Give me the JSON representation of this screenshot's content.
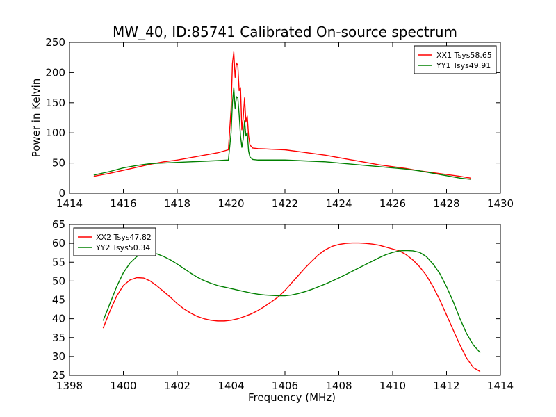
{
  "figure": {
    "title": "MW_40, ID:85741 Calibrated On-source spectrum"
  },
  "chart_data": [
    {
      "type": "line",
      "title": "MW_40, ID:85741 Calibrated On-source spectrum",
      "xlabel": "",
      "ylabel": "Power in Kelvin",
      "xlim": [
        1414,
        1430
      ],
      "ylim": [
        0,
        250
      ],
      "xticks": [
        1414,
        1416,
        1418,
        1420,
        1422,
        1424,
        1426,
        1428,
        1430
      ],
      "yticks": [
        0,
        50,
        100,
        150,
        200,
        250
      ],
      "grid": false,
      "legend_position": "upper-right",
      "series": [
        {
          "name": "XX1 Tsys58.65",
          "color": "#ff0000",
          "x": [
            1414.9,
            1415.5,
            1416.0,
            1416.5,
            1417.0,
            1417.5,
            1418.0,
            1418.5,
            1419.0,
            1419.5,
            1419.9,
            1420.0,
            1420.05,
            1420.1,
            1420.15,
            1420.2,
            1420.25,
            1420.3,
            1420.35,
            1420.4,
            1420.45,
            1420.5,
            1420.55,
            1420.6,
            1420.65,
            1420.7,
            1420.8,
            1421.0,
            1421.5,
            1422.0,
            1422.5,
            1423.0,
            1423.5,
            1424.0,
            1424.5,
            1425.0,
            1425.5,
            1426.0,
            1426.5,
            1427.0,
            1427.5,
            1428.0,
            1428.5,
            1428.9
          ],
          "values": [
            28,
            33,
            38,
            43,
            48,
            52,
            55,
            59,
            63,
            67,
            72,
            140,
            215,
            234,
            192,
            216,
            212,
            170,
            175,
            105,
            125,
            158,
            118,
            128,
            95,
            80,
            75,
            74,
            73,
            72,
            69,
            66,
            63,
            59,
            55,
            51,
            47,
            44,
            41,
            37,
            34,
            31,
            28,
            25
          ]
        },
        {
          "name": "YY1 Tsys49.91",
          "color": "#008000",
          "x": [
            1414.9,
            1415.5,
            1416.0,
            1416.5,
            1417.0,
            1417.5,
            1418.0,
            1418.5,
            1419.0,
            1419.5,
            1419.9,
            1420.0,
            1420.05,
            1420.1,
            1420.15,
            1420.2,
            1420.25,
            1420.3,
            1420.35,
            1420.4,
            1420.45,
            1420.5,
            1420.55,
            1420.6,
            1420.65,
            1420.7,
            1420.8,
            1421.0,
            1421.5,
            1422.0,
            1422.5,
            1423.0,
            1423.5,
            1424.0,
            1424.5,
            1425.0,
            1425.5,
            1426.0,
            1426.5,
            1427.0,
            1427.5,
            1428.0,
            1428.5,
            1428.9
          ],
          "values": [
            30,
            36,
            42,
            46,
            49,
            50,
            51,
            52,
            53,
            54,
            55,
            100,
            150,
            175,
            140,
            160,
            158,
            130,
            95,
            76,
            90,
            120,
            95,
            100,
            70,
            60,
            56,
            55,
            55,
            55,
            54,
            53,
            52,
            50,
            48,
            46,
            44,
            42,
            40,
            37,
            33,
            29,
            25,
            23
          ]
        }
      ]
    },
    {
      "type": "line",
      "title": "",
      "xlabel": "Frequency (MHz)",
      "ylabel": "",
      "xlim": [
        1398,
        1414
      ],
      "ylim": [
        25,
        65
      ],
      "xticks": [
        1398,
        1400,
        1402,
        1404,
        1406,
        1408,
        1410,
        1412,
        1414
      ],
      "yticks": [
        25,
        30,
        35,
        40,
        45,
        50,
        55,
        60,
        65
      ],
      "grid": false,
      "legend_position": "upper-left",
      "series": [
        {
          "name": "XX2 Tsys47.82",
          "color": "#ff0000",
          "x": [
            1399.25,
            1399.5,
            1399.75,
            1400.0,
            1400.25,
            1400.5,
            1400.75,
            1401.0,
            1401.25,
            1401.5,
            1401.75,
            1402.0,
            1402.25,
            1402.5,
            1402.75,
            1403.0,
            1403.25,
            1403.5,
            1403.75,
            1404.0,
            1404.25,
            1404.5,
            1404.75,
            1405.0,
            1405.25,
            1405.5,
            1405.75,
            1406.0,
            1406.25,
            1406.5,
            1406.75,
            1407.0,
            1407.25,
            1407.5,
            1407.75,
            1408.0,
            1408.25,
            1408.5,
            1408.75,
            1409.0,
            1409.25,
            1409.5,
            1409.75,
            1410.0,
            1410.25,
            1410.5,
            1410.75,
            1411.0,
            1411.25,
            1411.5,
            1411.75,
            1412.0,
            1412.25,
            1412.5,
            1412.75,
            1413.0,
            1413.25
          ],
          "values": [
            37.5,
            42.0,
            46.0,
            48.8,
            50.3,
            50.9,
            50.8,
            50.0,
            48.7,
            47.2,
            45.7,
            44.0,
            42.6,
            41.5,
            40.6,
            40.0,
            39.6,
            39.4,
            39.4,
            39.6,
            40.0,
            40.6,
            41.3,
            42.2,
            43.3,
            44.5,
            45.8,
            47.5,
            49.5,
            51.5,
            53.5,
            55.3,
            57.0,
            58.3,
            59.2,
            59.7,
            60.0,
            60.1,
            60.1,
            60.0,
            59.8,
            59.5,
            59.0,
            58.5,
            58.0,
            57.0,
            55.6,
            53.8,
            51.5,
            48.5,
            45.0,
            41.0,
            37.0,
            33.0,
            29.5,
            27.0,
            26.0
          ]
        },
        {
          "name": "YY2 Tsys50.34",
          "color": "#008000",
          "x": [
            1399.25,
            1399.5,
            1399.75,
            1400.0,
            1400.25,
            1400.5,
            1400.75,
            1401.0,
            1401.25,
            1401.5,
            1401.75,
            1402.0,
            1402.25,
            1402.5,
            1402.75,
            1403.0,
            1403.25,
            1403.5,
            1403.75,
            1404.0,
            1404.25,
            1404.5,
            1404.75,
            1405.0,
            1405.25,
            1405.5,
            1405.75,
            1406.0,
            1406.25,
            1406.5,
            1406.75,
            1407.0,
            1407.25,
            1407.5,
            1407.75,
            1408.0,
            1408.25,
            1408.5,
            1408.75,
            1409.0,
            1409.25,
            1409.5,
            1409.75,
            1410.0,
            1410.25,
            1410.5,
            1410.75,
            1411.0,
            1411.25,
            1411.5,
            1411.75,
            1412.0,
            1412.25,
            1412.5,
            1412.75,
            1413.0,
            1413.25
          ],
          "values": [
            39.5,
            44.0,
            48.5,
            52.2,
            54.8,
            56.5,
            57.3,
            57.5,
            57.2,
            56.5,
            55.6,
            54.5,
            53.3,
            52.1,
            51.0,
            50.1,
            49.4,
            48.8,
            48.4,
            48.0,
            47.6,
            47.2,
            46.8,
            46.5,
            46.3,
            46.2,
            46.1,
            46.1,
            46.3,
            46.7,
            47.2,
            47.8,
            48.5,
            49.2,
            50.0,
            50.8,
            51.7,
            52.6,
            53.5,
            54.4,
            55.3,
            56.2,
            57.0,
            57.6,
            58.0,
            58.1,
            58.0,
            57.6,
            56.5,
            54.5,
            52.0,
            48.5,
            44.5,
            40.0,
            36.0,
            33.0,
            31.0
          ]
        }
      ]
    }
  ]
}
